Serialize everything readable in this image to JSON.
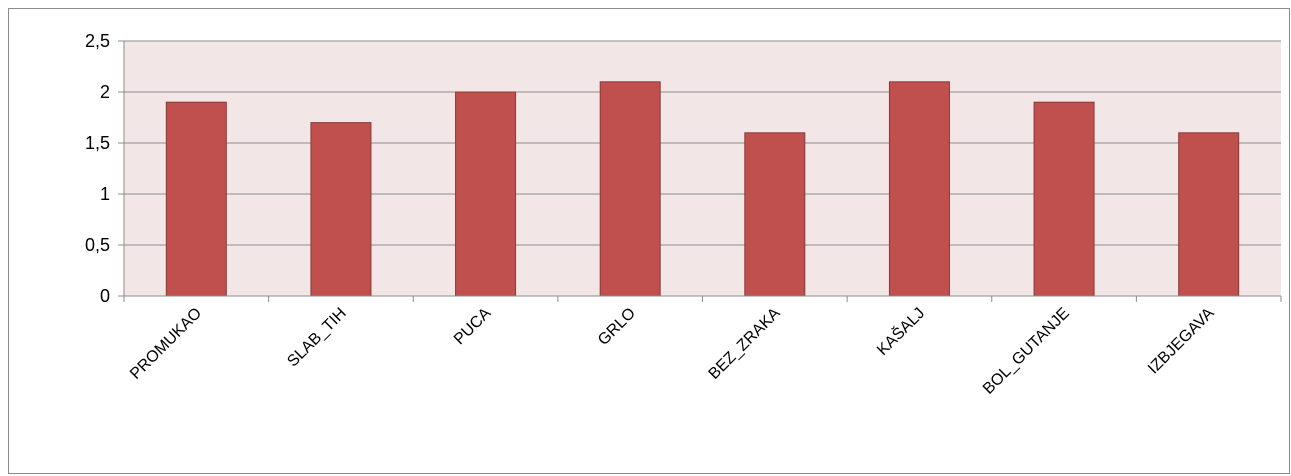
{
  "chart_data": {
    "type": "bar",
    "title": "",
    "xlabel": "",
    "ylabel": "",
    "categories": [
      "PROMUKAO",
      "SLAB_TIH",
      "PUCA",
      "GRLO",
      "BEZ_ZRAKA",
      "KAŠALJ",
      "BOL_GUTANJE",
      "IZBJEGAVA"
    ],
    "values": [
      1.9,
      1.7,
      2.0,
      2.1,
      1.6,
      2.1,
      1.9,
      1.6
    ],
    "ylim": [
      0,
      2.5
    ],
    "yticks": [
      0,
      0.5,
      1,
      1.5,
      2,
      2.5
    ],
    "ytick_labels": [
      "0",
      "0,5",
      "1",
      "1,5",
      "2",
      "2,5"
    ],
    "grid": true,
    "legend": "none",
    "colors": {
      "bar_fill": "#c0504d",
      "bar_stroke": "#8c3836",
      "plot_background": "#f2e6e6",
      "gridline": "#8c8c8c"
    }
  }
}
